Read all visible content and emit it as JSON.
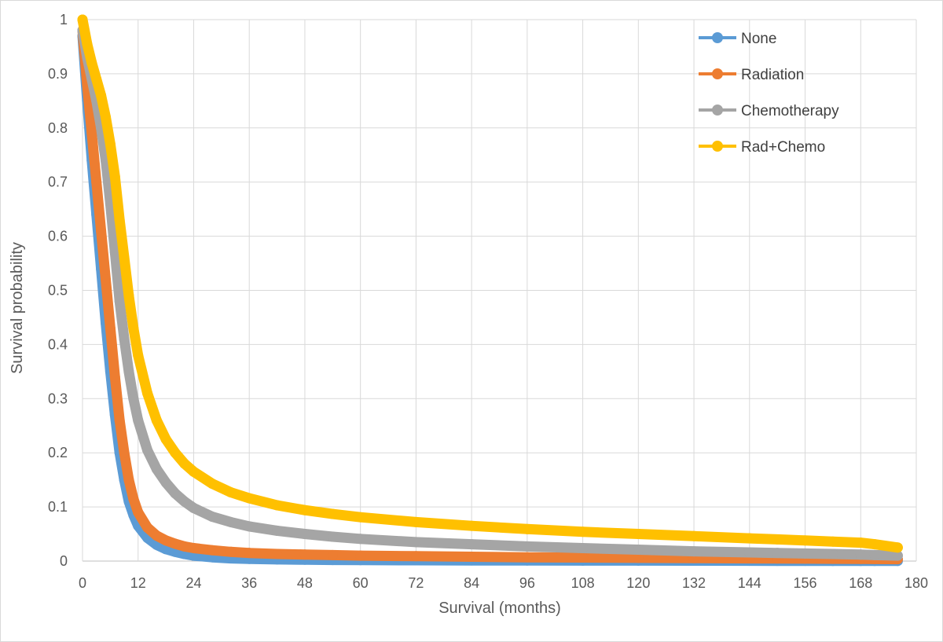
{
  "chart_data": {
    "type": "scatter",
    "title": "",
    "xlabel": "Survival (months)",
    "ylabel": "Survival probability",
    "xlim": [
      0,
      180
    ],
    "ylim": [
      0,
      1
    ],
    "x_ticks": [
      "0",
      "12",
      "24",
      "36",
      "48",
      "60",
      "72",
      "84",
      "96",
      "108",
      "120",
      "132",
      "144",
      "156",
      "168",
      "180"
    ],
    "y_ticks": [
      "0",
      "0.1",
      "0.2",
      "0.3",
      "0.4",
      "0.5",
      "0.6",
      "0.7",
      "0.8",
      "0.9",
      "1"
    ],
    "grid": true,
    "legend_position": "top-right",
    "x": [
      0,
      1,
      2,
      3,
      4,
      5,
      6,
      7,
      8,
      9,
      10,
      11,
      12,
      14,
      16,
      18,
      20,
      22,
      24,
      28,
      32,
      36,
      42,
      48,
      54,
      60,
      72,
      84,
      96,
      108,
      120,
      132,
      144,
      150,
      156,
      162,
      168,
      171,
      176
    ],
    "series": [
      {
        "name": "None",
        "color": "#5b9bd5",
        "values": [
          0.97,
          0.85,
          0.74,
          0.64,
          0.54,
          0.44,
          0.35,
          0.27,
          0.2,
          0.15,
          0.11,
          0.085,
          0.065,
          0.043,
          0.03,
          0.022,
          0.017,
          0.013,
          0.01,
          0.007,
          0.005,
          0.004,
          0.003,
          0.0025,
          0.002,
          0.0018,
          0.0015,
          0.0012,
          0.001,
          0.0009,
          0.0008,
          0.0007,
          0.0006,
          0.0005,
          0.0005,
          0.0004,
          0.0004,
          0.0004,
          0.0003
        ]
      },
      {
        "name": "Radiation",
        "color": "#ed7d31",
        "values": [
          0.98,
          0.88,
          0.79,
          0.7,
          0.61,
          0.52,
          0.43,
          0.34,
          0.26,
          0.2,
          0.15,
          0.115,
          0.09,
          0.062,
          0.047,
          0.038,
          0.032,
          0.027,
          0.024,
          0.02,
          0.017,
          0.015,
          0.013,
          0.012,
          0.011,
          0.01,
          0.009,
          0.008,
          0.007,
          0.0065,
          0.006,
          0.0055,
          0.005,
          0.0048,
          0.0045,
          0.0042,
          0.004,
          0.0038,
          0.0035
        ]
      },
      {
        "name": "Chemotherapy",
        "color": "#a5a5a5",
        "values": [
          0.98,
          0.93,
          0.89,
          0.85,
          0.8,
          0.74,
          0.66,
          0.57,
          0.48,
          0.41,
          0.35,
          0.3,
          0.26,
          0.205,
          0.17,
          0.145,
          0.125,
          0.11,
          0.098,
          0.082,
          0.072,
          0.064,
          0.056,
          0.05,
          0.045,
          0.041,
          0.035,
          0.031,
          0.027,
          0.024,
          0.021,
          0.018,
          0.016,
          0.015,
          0.014,
          0.013,
          0.012,
          0.011,
          0.01
        ]
      },
      {
        "name": "Rad+Chemo",
        "color": "#ffc000",
        "values": [
          1.0,
          0.955,
          0.92,
          0.89,
          0.86,
          0.82,
          0.77,
          0.71,
          0.63,
          0.56,
          0.49,
          0.43,
          0.38,
          0.31,
          0.26,
          0.225,
          0.2,
          0.18,
          0.165,
          0.143,
          0.127,
          0.116,
          0.103,
          0.094,
          0.087,
          0.081,
          0.072,
          0.065,
          0.059,
          0.054,
          0.05,
          0.046,
          0.042,
          0.04,
          0.038,
          0.036,
          0.034,
          0.031,
          0.025
        ]
      }
    ]
  }
}
